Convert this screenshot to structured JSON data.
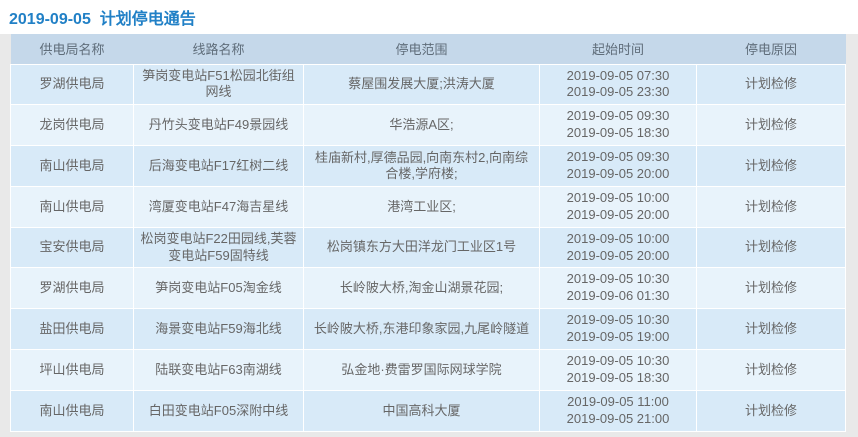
{
  "page": {
    "title": "2019-09-05  计划停电通告"
  },
  "colors": {
    "title_blue": "#2180c6",
    "header_bg": "#c5d8ea",
    "row_odd_bg": "#d8eaf8",
    "row_even_bg": "#e8f3fb",
    "cell_text": "#666666",
    "page_bg": "#e9e9e9"
  },
  "table": {
    "headers": {
      "bureau": "供电局名称",
      "line": "线路名称",
      "scope": "停电范围",
      "time": "起始时间",
      "reason": "停电原因"
    },
    "rows": [
      {
        "bureau": "罗湖供电局",
        "line": "笋岗变电站F51松园北街组网线",
        "scope": "蔡屋围发展大厦;洪涛大厦",
        "start": "2019-09-05 07:30",
        "end": "2019-09-05 23:30",
        "reason": "计划检修"
      },
      {
        "bureau": "龙岗供电局",
        "line": "丹竹头变电站F49景园线",
        "scope": "华浩源A区;",
        "start": "2019-09-05 09:30",
        "end": "2019-09-05 18:30",
        "reason": "计划检修"
      },
      {
        "bureau": "南山供电局",
        "line": "后海变电站F17红树二线",
        "scope": "桂庙新村,厚德品园,向南东村2,向南综合楼,学府楼;",
        "start": "2019-09-05 09:30",
        "end": "2019-09-05 20:00",
        "reason": "计划检修"
      },
      {
        "bureau": "南山供电局",
        "line": "湾厦变电站F47海吉星线",
        "scope": "港湾工业区;",
        "start": "2019-09-05 10:00",
        "end": "2019-09-05 20:00",
        "reason": "计划检修"
      },
      {
        "bureau": "宝安供电局",
        "line": "松岗变电站F22田园线,芙蓉变电站F59固特线",
        "scope": "松岗镇东方大田洋龙门工业区1号",
        "start": "2019-09-05 10:00",
        "end": "2019-09-05 20:00",
        "reason": "计划检修"
      },
      {
        "bureau": "罗湖供电局",
        "line": "笋岗变电站F05淘金线",
        "scope": "长岭陂大桥,淘金山湖景花园;",
        "start": "2019-09-05 10:30",
        "end": "2019-09-06 01:30",
        "reason": "计划检修"
      },
      {
        "bureau": "盐田供电局",
        "line": "海景变电站F59海北线",
        "scope": "长岭陂大桥,东港印象家园,九尾岭隧道",
        "start": "2019-09-05 10:30",
        "end": "2019-09-05 19:00",
        "reason": "计划检修"
      },
      {
        "bureau": "坪山供电局",
        "line": "陆联变电站F63南湖线",
        "scope": "弘金地·费雷罗国际网球学院",
        "start": "2019-09-05 10:30",
        "end": "2019-09-05 18:30",
        "reason": "计划检修"
      },
      {
        "bureau": "南山供电局",
        "line": "白田变电站F05深附中线",
        "scope": "中国高科大厦",
        "start": "2019-09-05 11:00",
        "end": "2019-09-05 21:00",
        "reason": "计划检修"
      }
    ]
  }
}
